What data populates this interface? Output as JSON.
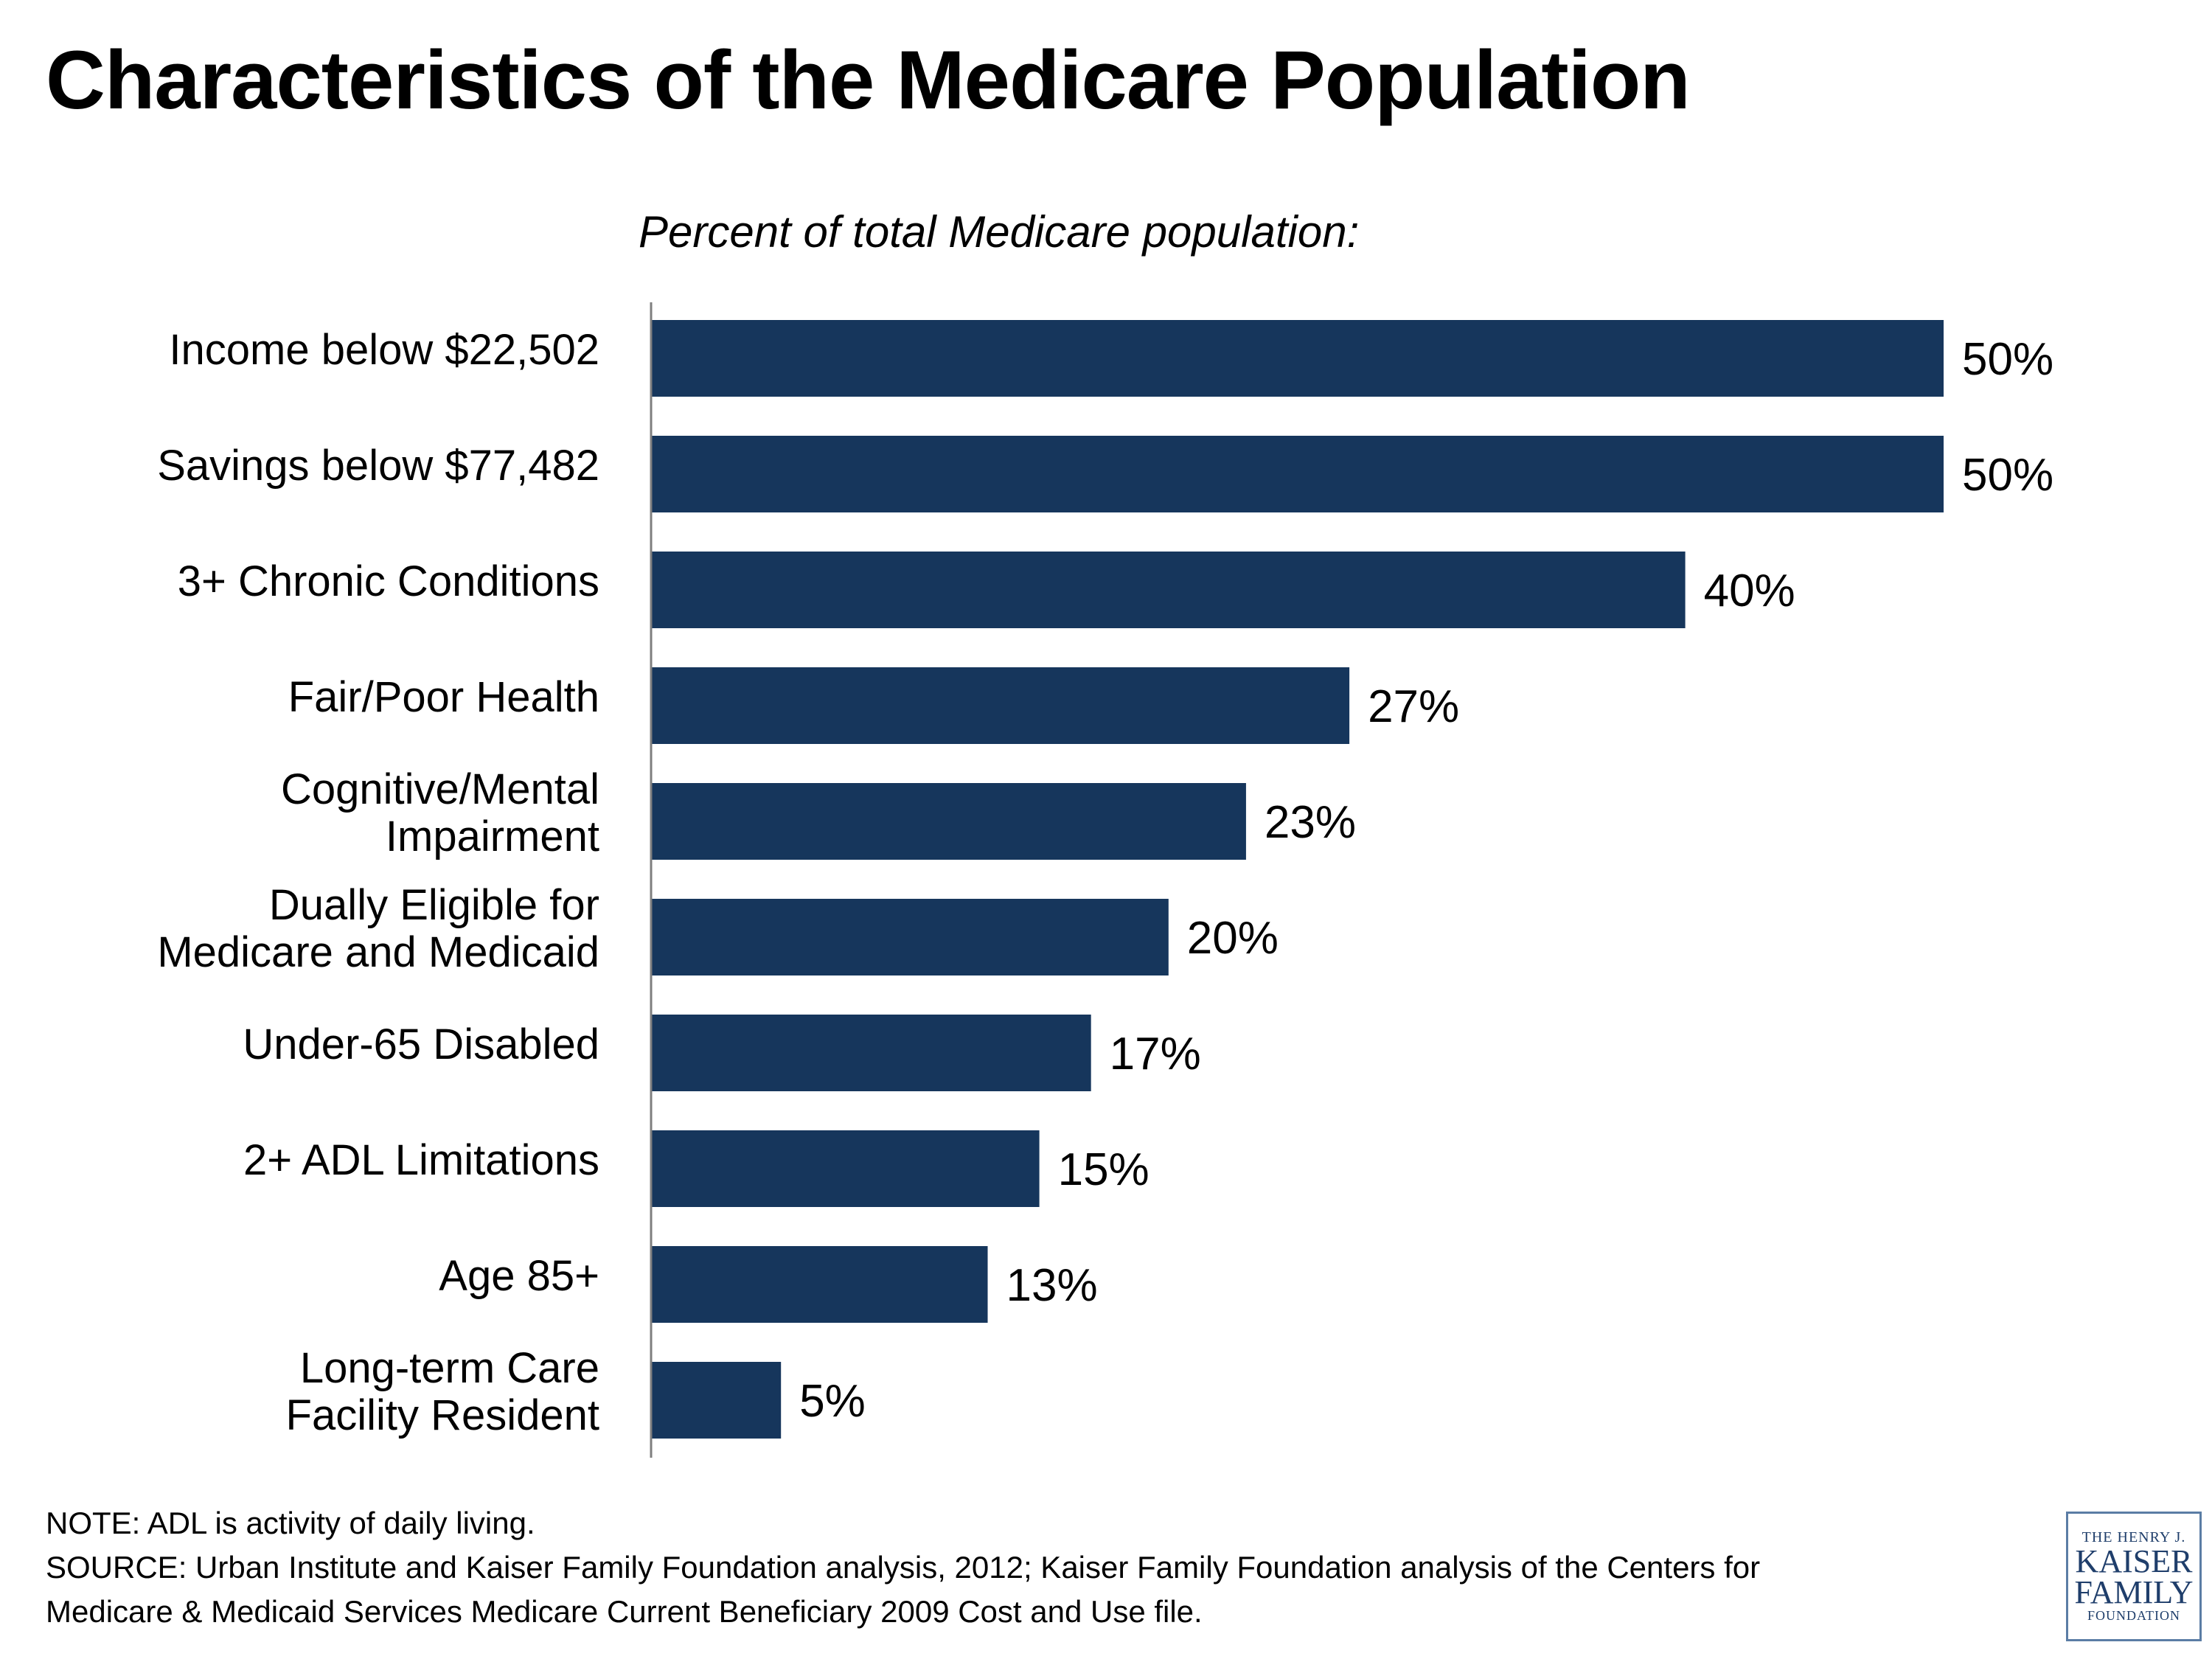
{
  "title": "Characteristics of the Medicare Population",
  "subtitle": "Percent of total Medicare population:",
  "colors": {
    "bar": "#16365c",
    "axis": "#7f7f7f"
  },
  "chart_data": {
    "type": "bar",
    "orientation": "horizontal",
    "categories": [
      [
        "Income below $22,502"
      ],
      [
        "Savings below $77,482"
      ],
      [
        "3+ Chronic Conditions"
      ],
      [
        "Fair/Poor Health"
      ],
      [
        "Cognitive/Mental",
        "Impairment"
      ],
      [
        "Dually Eligible for",
        "Medicare and Medicaid"
      ],
      [
        "Under-65 Disabled"
      ],
      [
        "2+ ADL Limitations"
      ],
      [
        "Age 85+"
      ],
      [
        "Long-term Care",
        "Facility Resident"
      ]
    ],
    "values": [
      50,
      50,
      40,
      27,
      23,
      20,
      17,
      15,
      13,
      5
    ],
    "value_labels": [
      "50%",
      "50%",
      "40%",
      "27%",
      "23%",
      "20%",
      "17%",
      "15%",
      "13%",
      "5%"
    ],
    "title": "Characteristics of the Medicare Population",
    "subtitle": "Percent of total Medicare population:",
    "xlim": [
      0,
      50
    ],
    "grid": false,
    "legend": "none"
  },
  "notes": {
    "note": "NOTE: ADL is activity of daily living.",
    "source_line1": "SOURCE: Urban Institute and Kaiser Family Foundation analysis, 2012; Kaiser Family Foundation analysis of the Centers for",
    "source_line2": "Medicare & Medicaid Services Medicare Current Beneficiary 2009 Cost and Use file."
  },
  "logo": {
    "line1": "THE HENRY J.",
    "line2": "KAISER",
    "line3": "FAMILY",
    "line4": "FOUNDATION"
  }
}
